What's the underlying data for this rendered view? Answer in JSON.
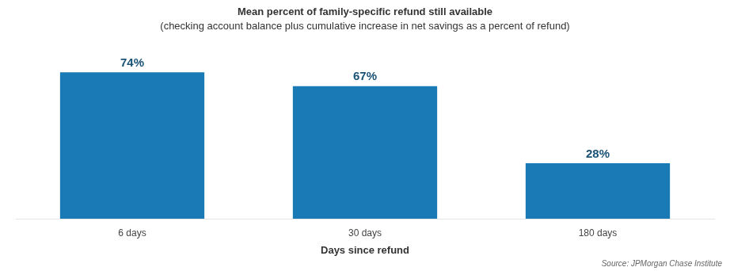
{
  "chart_data": {
    "type": "bar",
    "title": "Mean percent of family-specific refund still available",
    "subtitle": "(checking account balance plus cumulative increase in net savings as a percent of refund)",
    "xlabel": "Days since refund",
    "annotations": [
      "Source: JPMorgan Chase Institute"
    ],
    "categories": [
      "6 days",
      "30 days",
      "180 days"
    ],
    "values": [
      74,
      67,
      28
    ],
    "value_labels": [
      "74%",
      "67%",
      "28%"
    ],
    "data_labels": true,
    "color": "#1a7ab5",
    "ylim": [
      0,
      90
    ],
    "tick_labels": "x",
    "grid": false
  }
}
